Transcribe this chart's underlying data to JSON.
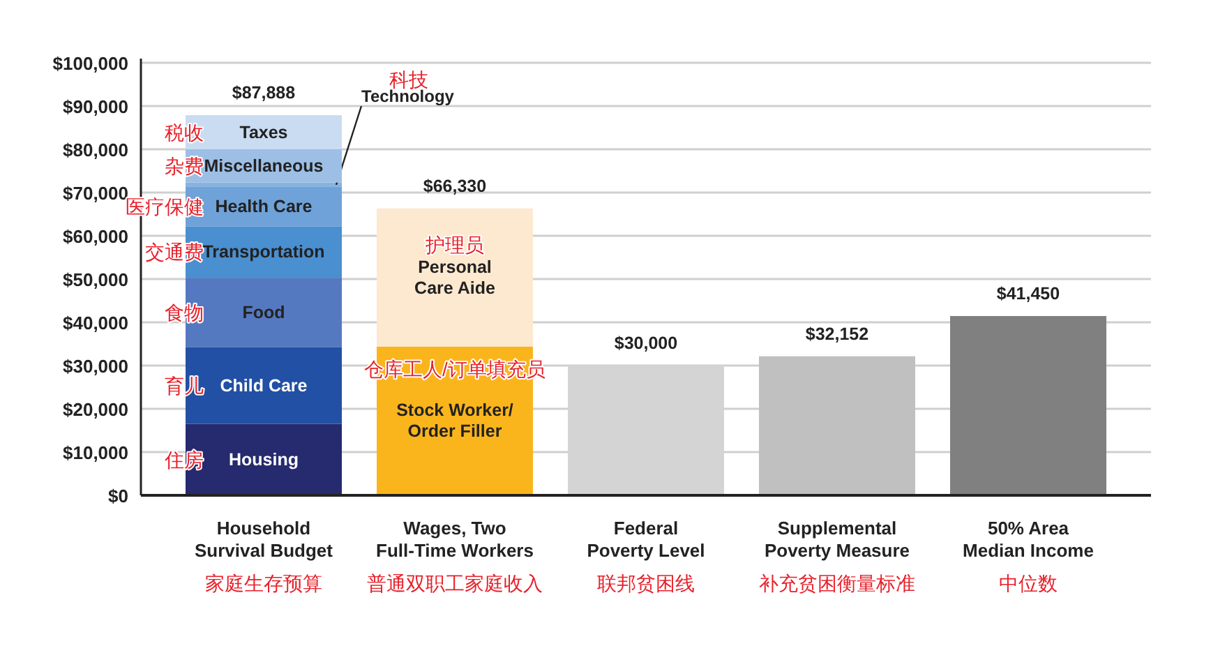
{
  "chart_data": {
    "type": "bar",
    "stacked": true,
    "categories": [
      "Household\nSurvival Budget",
      "Wages, Two\nFull-Time Workers",
      "Federal\nPoverty Level",
      "Supplemental\nPoverty Measure",
      "50% Area\nMedian Income"
    ],
    "series": [
      {
        "name": "Housing",
        "color": "#262a6e",
        "values": [
          16500,
          null,
          null,
          null,
          null
        ]
      },
      {
        "name": "Child Care",
        "color": "#2250a4",
        "values": [
          17800,
          null,
          null,
          null,
          null
        ]
      },
      {
        "name": "Food",
        "color": "#5579c0",
        "values": [
          16000,
          null,
          null,
          null,
          null
        ]
      },
      {
        "name": "Transportation",
        "color": "#4a8fd0",
        "values": [
          11900,
          null,
          null,
          null,
          null
        ]
      },
      {
        "name": "Health Care",
        "color": "#6fa2d8",
        "values": [
          9100,
          null,
          null,
          null,
          null
        ]
      },
      {
        "name": "Technology",
        "color": "#86b3e0",
        "values": [
          1000,
          null,
          null,
          null,
          null
        ]
      },
      {
        "name": "Miscellaneous",
        "color": "#9dbfe6",
        "values": [
          7700,
          null,
          null,
          null,
          null
        ]
      },
      {
        "name": "Taxes",
        "color": "#c9dcf1",
        "values": [
          7888,
          null,
          null,
          null,
          null
        ]
      },
      {
        "name": "Stock Worker/\nOrder Filler",
        "color": "#fbb51c",
        "values": [
          null,
          34400,
          null,
          null,
          null
        ]
      },
      {
        "name": "Personal\nCare Aide",
        "color": "#fde9d0",
        "values": [
          null,
          31930,
          null,
          null,
          null
        ]
      },
      {
        "colors": [
          null,
          null,
          "#d4d4d4",
          "#c0c0c0",
          "#808080"
        ],
        "values": [
          null,
          null,
          30000,
          32152,
          41450
        ]
      }
    ],
    "totals": [
      "$87,888",
      "$66,330",
      "$30,000",
      "$32,152",
      "$41,450"
    ],
    "ylim": [
      0,
      100000
    ],
    "yticks": [
      {
        "value": 0,
        "label": "$0"
      },
      {
        "value": 10000,
        "label": "$10,000"
      },
      {
        "value": 20000,
        "label": "$20,000"
      },
      {
        "value": 30000,
        "label": "$30,000"
      },
      {
        "value": 40000,
        "label": "$40,000"
      },
      {
        "value": 50000,
        "label": "$50,000"
      },
      {
        "value": 60000,
        "label": "$60,000"
      },
      {
        "value": 70000,
        "label": "$70,000"
      },
      {
        "value": 80000,
        "label": "$80,000"
      },
      {
        "value": 90000,
        "label": "$90,000"
      },
      {
        "value": 100000,
        "label": "$100,000"
      }
    ],
    "grid": "y",
    "annotations": [
      "住房",
      "育儿",
      "食物",
      "交通费",
      "医疗保健",
      "杂费",
      "税收",
      "科技",
      "护理员",
      "仓库工人/订单填充员",
      "家庭生存预算",
      "普通双职工家庭收入",
      "联邦贫困线",
      "补充贫困衡量标准",
      "中位数"
    ]
  }
}
